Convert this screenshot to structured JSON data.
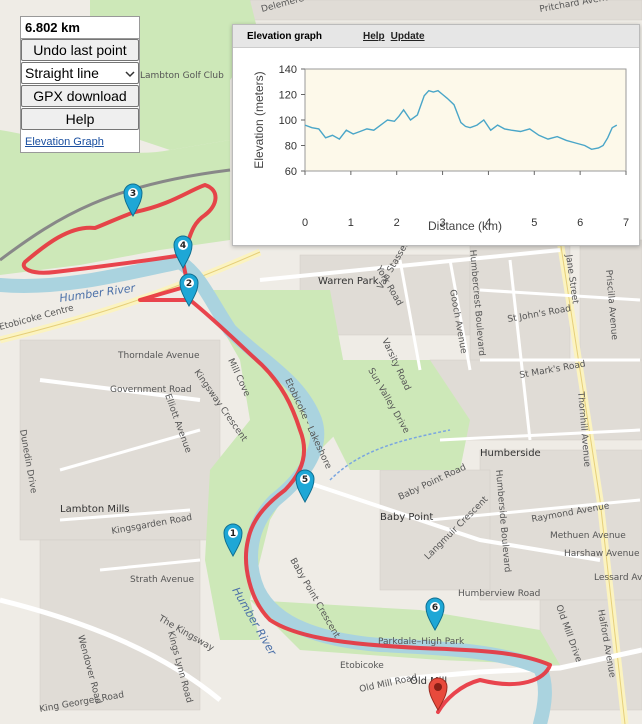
{
  "panel": {
    "distance": "6.802 km",
    "undo_label": "Undo last point",
    "mode_selected": "Straight line",
    "gpx_label": "GPX download",
    "help_label": "Help",
    "elevation_link": "Elevation Graph"
  },
  "elevation_panel": {
    "title": "Elevation graph",
    "help_link": "Help",
    "update_link": "Update"
  },
  "chart_data": {
    "type": "line",
    "title": "",
    "xlabel": "Distance (km)",
    "ylabel": "Elevation (meters)",
    "xlim": [
      0,
      7
    ],
    "ylim": [
      60,
      140
    ],
    "x_ticks": [
      "0",
      "1",
      "2",
      "3",
      "4",
      "5",
      "6",
      "7"
    ],
    "y_ticks": [
      "60",
      "80",
      "100",
      "120",
      "140"
    ],
    "grid": false,
    "line_color": "#4aa6c8",
    "background": "#fdf9ea",
    "series": [
      {
        "x": [
          0,
          0.15,
          0.3,
          0.45,
          0.6,
          0.75,
          0.9,
          1.05,
          1.2,
          1.35,
          1.5,
          1.65,
          1.8,
          1.95,
          2.05,
          2.15,
          2.3,
          2.45,
          2.6,
          2.7,
          2.8,
          2.9,
          3.0,
          3.1,
          3.25,
          3.4,
          3.5,
          3.6,
          3.75,
          3.9,
          4.05,
          4.2,
          4.35,
          4.5,
          4.7,
          4.9,
          5.1,
          5.3,
          5.5,
          5.7,
          5.9,
          6.1,
          6.25,
          6.4,
          6.5,
          6.6,
          6.7,
          6.8
        ],
        "y": [
          96,
          94,
          93,
          86,
          88,
          85,
          92,
          89,
          91,
          93,
          92,
          96,
          100,
          99,
          103,
          108,
          100,
          104,
          119,
          123,
          122,
          123,
          120,
          117,
          112,
          98,
          95,
          94,
          96,
          100,
          92,
          96,
          93,
          92,
          91,
          93,
          88,
          85,
          87,
          84,
          82,
          80,
          77,
          78,
          80,
          86,
          94,
          96
        ]
      }
    ]
  },
  "map": {
    "labels": {
      "humber_river_top": "Humber River",
      "humber_river_bottom": "Humber River",
      "etobicoke_creek": "Etobicoke Centre",
      "lakeshore": "Etobicoke - Lakeshore",
      "parkdale": "Parkdale–High Park",
      "etobicoke_bottom": "Etobicoke",
      "warren_park": "Warren Park",
      "humberside": "Humberside",
      "baby_point": "Baby Point",
      "lambton_mills": "Lambton Mills",
      "lambton_golf": "Lambton Golf Club",
      "jane_street": "Jane Street",
      "thorndale": "Thorndale Avenue",
      "government": "Government Road",
      "kingsway_cres": "Kingsway Crescent",
      "elliott": "Elliott Avenue",
      "mill_cove": "Mill Cove",
      "dunedin": "Dunedin Drive",
      "kingsgarden": "Kingsgarden Road",
      "strath": "Strath Avenue",
      "the_kingsway": "The Kingsway",
      "kings_lynn": "Kings Lynn Road",
      "wendover": "Wendover Road",
      "king_georges": "King Georges Road",
      "baby_point_cres": "Baby Point Crescent",
      "baby_point_road": "Baby Point Road",
      "humberview": "Humberview Road",
      "old_mill_road": "Old Mill Road",
      "old_mill": "Old Mill",
      "sun_valley": "Sun Valley Drive",
      "varsity": "Varsity Road",
      "van_stassen": "Van Stassen Boulevard",
      "gooch": "Gooch Avenue",
      "humbercrest": "Humbercrest Boulevard",
      "st_johns": "St John's Road",
      "st_marks": "St Mark's Road",
      "priscilla": "Priscilla Avenue",
      "thornhill": "Thornhill Avenue",
      "raymond": "Raymond Avenue",
      "methuen": "Methuen Avenue",
      "harshaw": "Harshaw Avenue",
      "lessard": "Lessard Ave",
      "old_mill_drive": "Old Mill Drive",
      "halford": "Halford Avenue",
      "langmuir": "Langmuir Crescent",
      "humberside_blvd": "Humberside Boulevard",
      "delemere": "Delemere Ave",
      "pritchard": "Pritchard Avenue",
      "york_road": "York Road"
    },
    "markers": [
      "1",
      "2",
      "3",
      "4",
      "5",
      "6"
    ],
    "route_color": "#e8323c"
  }
}
